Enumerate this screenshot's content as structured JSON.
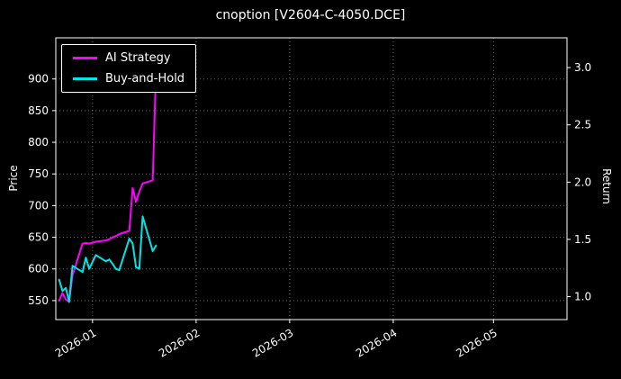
{
  "chart_data": {
    "type": "line",
    "title": "cnoption [V2604-C-4050.DCE]",
    "xlabel": "",
    "ylabel_left": "Price",
    "ylabel_right": "Return",
    "background": "#000000",
    "text_color": "#ffffff",
    "grid": true,
    "grid_style": "dotted",
    "legend_position": "upper left",
    "x_range": [
      "2025-12-21",
      "2026-05-23"
    ],
    "x_ticks": [
      {
        "date": "2026-01-01",
        "label": "2026-01"
      },
      {
        "date": "2026-02-01",
        "label": "2026-02"
      },
      {
        "date": "2026-03-01",
        "label": "2026-03"
      },
      {
        "date": "2026-04-01",
        "label": "2026-04"
      },
      {
        "date": "2026-05-01",
        "label": "2026-05"
      }
    ],
    "y_left": {
      "range": [
        520,
        965
      ],
      "ticks": [
        "550",
        "600",
        "650",
        "700",
        "750",
        "800",
        "850",
        "900"
      ]
    },
    "y_right": {
      "range": [
        0.8,
        3.26
      ],
      "ticks": [
        "1.0",
        "1.5",
        "2.0",
        "2.5",
        "3.0"
      ]
    },
    "x": [
      "2025-12-22",
      "2025-12-23",
      "2025-12-24",
      "2025-12-25",
      "2025-12-26",
      "2025-12-29",
      "2025-12-30",
      "2025-12-31",
      "2026-01-02",
      "2026-01-05",
      "2026-01-06",
      "2026-01-07",
      "2026-01-08",
      "2026-01-09",
      "2026-01-12",
      "2026-01-13",
      "2026-01-14",
      "2026-01-15",
      "2026-01-16",
      "2026-01-19",
      "2026-01-20"
    ],
    "series": [
      {
        "name": "AI Strategy",
        "color": "#ff00ff",
        "values": [
          550,
          562,
          552,
          548,
          590,
          640,
          641,
          640,
          643,
          645,
          647,
          650,
          652,
          655,
          660,
          728,
          706,
          722,
          735,
          740,
          918
        ]
      },
      {
        "name": "Buy-and-Hold",
        "color": "#00e5e5",
        "values": [
          583,
          565,
          570,
          548,
          605,
          595,
          618,
          600,
          622,
          612,
          615,
          608,
          600,
          598,
          648,
          640,
          603,
          600,
          683,
          628,
          637
        ]
      }
    ]
  }
}
